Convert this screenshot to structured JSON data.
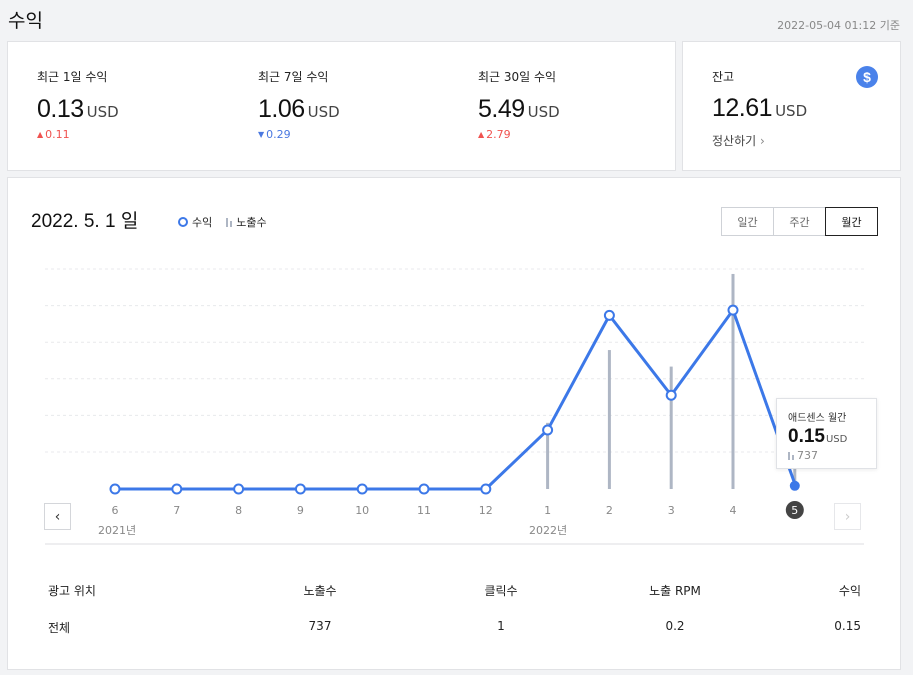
{
  "header": {
    "title": "수익",
    "timestamp": "2022-05-04 01:12 기준"
  },
  "stats": [
    {
      "label": "최근 1일 수익",
      "value": "0.13",
      "unit": "USD",
      "change": "0.11",
      "direction": "up"
    },
    {
      "label": "최근 7일 수익",
      "value": "1.06",
      "unit": "USD",
      "change": "0.29",
      "direction": "down"
    },
    {
      "label": "최근 30일 수익",
      "value": "5.49",
      "unit": "USD",
      "change": "2.79",
      "direction": "up"
    }
  ],
  "balance": {
    "label": "잔고",
    "value": "12.61",
    "unit": "USD",
    "icon": "dollar-icon",
    "settle_link": "정산하기",
    "settle_chevron": "›"
  },
  "chart_header": {
    "date": "2022. 5. 1",
    "date_suffix": "일",
    "legend": [
      {
        "name": "수익",
        "icon": "circle-icon"
      },
      {
        "name": "노출수",
        "icon": "bars-icon"
      }
    ],
    "tabs": [
      {
        "label": "일간",
        "active": false
      },
      {
        "label": "주간",
        "active": false
      },
      {
        "label": "월간",
        "active": true
      }
    ]
  },
  "chart_data": {
    "type": "line",
    "x_labels": [
      "6",
      "7",
      "8",
      "9",
      "10",
      "11",
      "12",
      "1",
      "2",
      "3",
      "4",
      "5"
    ],
    "year_labels": [
      {
        "label": "2021년",
        "at": "6"
      },
      {
        "label": "2022년",
        "at": "1"
      }
    ],
    "selected": "5",
    "series": [
      {
        "name": "수익",
        "kind": "line",
        "color": "#3c78e8",
        "values": [
          0,
          0,
          0,
          0,
          0,
          0,
          0,
          1.7,
          5.0,
          2.7,
          5.15,
          0.15
        ]
      },
      {
        "name": "노출수",
        "kind": "bar",
        "color": "#aeb6c4",
        "values": [
          0,
          0,
          0,
          0,
          0,
          0,
          0,
          2000,
          4200,
          3700,
          6500,
          737
        ]
      }
    ],
    "revenue_ylim": [
      0,
      5.5
    ],
    "impressions_ylim": [
      0,
      6650
    ],
    "grid": true
  },
  "tooltip": {
    "title": "애드센스 월간",
    "value": "0.15",
    "unit": "USD",
    "impressions": "737"
  },
  "table": {
    "headers": [
      "광고 위치",
      "노출수",
      "클릭수",
      "노출 RPM",
      "수익"
    ],
    "rows": [
      [
        "전체",
        "737",
        "1",
        "0.2",
        "0.15"
      ]
    ]
  },
  "nav": {
    "prev": "‹",
    "next": "›"
  },
  "colors": {
    "accent": "#3c78e8",
    "up": "#f0524f",
    "down": "#4a78e0",
    "impressions": "#aeb6c4"
  }
}
